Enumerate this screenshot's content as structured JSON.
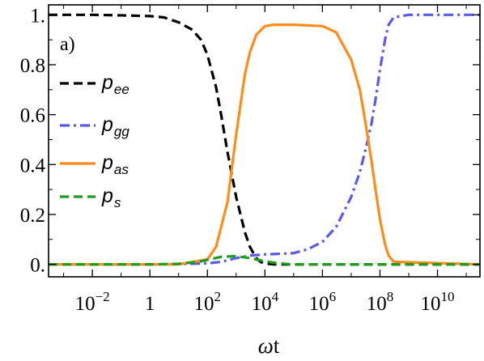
{
  "chart_data": {
    "type": "line",
    "panel_label": "a)",
    "xlabel": {
      "greek": "ω",
      "latin": "t"
    },
    "ylabel": "",
    "xscale": "log",
    "xlim": [
      0.0003,
      300000000000.0
    ],
    "ylim": [
      -0.05,
      1.04
    ],
    "x_ticks": [
      {
        "value": 0.01,
        "base": "10",
        "exp": "−2"
      },
      {
        "value": 1,
        "base": "1",
        "exp": ""
      },
      {
        "value": 100,
        "base": "10",
        "exp": "2"
      },
      {
        "value": 10000,
        "base": "10",
        "exp": "4"
      },
      {
        "value": 1000000,
        "base": "10",
        "exp": "6"
      },
      {
        "value": 100000000,
        "base": "10",
        "exp": "8"
      },
      {
        "value": 10000000000,
        "base": "10",
        "exp": "10"
      }
    ],
    "y_ticks": [
      {
        "value": 0.0,
        "label": "0."
      },
      {
        "value": 0.2,
        "label": "0.2"
      },
      {
        "value": 0.4,
        "label": "0.4"
      },
      {
        "value": 0.6,
        "label": "0.6"
      },
      {
        "value": 0.8,
        "label": "0.8"
      },
      {
        "value": 1.0,
        "label": "1."
      }
    ],
    "legend_position": "left",
    "series": [
      {
        "name": "p_ee",
        "label_main": "p",
        "label_sub": "ee",
        "sub_italic": false,
        "color": "#000000",
        "dash": "dashed",
        "x": [
          0.0003,
          0.001,
          0.01,
          0.1,
          1,
          3,
          10,
          30,
          60,
          100,
          200,
          300,
          500,
          1000,
          2000,
          3000,
          5000,
          7000,
          10000,
          20000,
          100000,
          1000000,
          10000000,
          100000000,
          1000000000,
          10000000000,
          300000000000
        ],
        "y": [
          1.0,
          1.0,
          1.0,
          0.998,
          0.995,
          0.99,
          0.97,
          0.94,
          0.9,
          0.84,
          0.71,
          0.6,
          0.45,
          0.27,
          0.13,
          0.07,
          0.025,
          0.01,
          0.003,
          0.0,
          0.0,
          0.0,
          0.0,
          0.0,
          0.0,
          0.0,
          0.0
        ]
      },
      {
        "name": "p_gg",
        "label_main": "p",
        "label_sub": "gg",
        "sub_italic": false,
        "color": "#5a5aee",
        "dash": "dashdot",
        "x": [
          0.0003,
          1,
          10,
          100,
          300,
          1000,
          3000,
          10000,
          30000,
          100000,
          300000,
          1000000,
          3000000,
          10000000,
          20000000,
          30000000,
          50000000,
          70000000,
          100000000,
          150000000,
          200000000,
          300000000,
          1000000000,
          300000000000
        ],
        "y": [
          0.0,
          0.0,
          0.001,
          0.004,
          0.01,
          0.025,
          0.035,
          0.04,
          0.042,
          0.045,
          0.06,
          0.09,
          0.15,
          0.27,
          0.37,
          0.45,
          0.56,
          0.66,
          0.78,
          0.9,
          0.96,
          0.99,
          1.0,
          1.0
        ]
      },
      {
        "name": "p_as",
        "label_main": "p",
        "label_sub": "as",
        "sub_italic": false,
        "color": "#ff8c1a",
        "dash": "solid",
        "x": [
          0.0003,
          10,
          100,
          200,
          500,
          1000,
          2000,
          3000,
          5000,
          10000,
          20000,
          100000,
          1000000,
          3000000,
          10000000,
          20000000,
          30000000,
          50000000,
          70000000,
          100000000,
          150000000,
          200000000,
          300000000,
          300000000000
        ],
        "y": [
          0.0,
          0.0,
          0.02,
          0.07,
          0.25,
          0.52,
          0.76,
          0.85,
          0.92,
          0.955,
          0.96,
          0.96,
          0.955,
          0.93,
          0.82,
          0.7,
          0.58,
          0.42,
          0.3,
          0.18,
          0.08,
          0.035,
          0.01,
          0.0
        ]
      },
      {
        "name": "p_s",
        "label_main": "p",
        "label_sub": "s",
        "sub_italic": true,
        "color": "#1a9e1a",
        "dash": "dashed",
        "x": [
          0.0003,
          1,
          10,
          50,
          100,
          300,
          1000,
          3000,
          10000,
          30000,
          100000,
          1000000,
          300000000000
        ],
        "y": [
          0.0,
          0.0,
          0.002,
          0.01,
          0.018,
          0.03,
          0.033,
          0.025,
          0.012,
          0.004,
          0.0,
          0.0,
          0.0
        ]
      }
    ]
  }
}
